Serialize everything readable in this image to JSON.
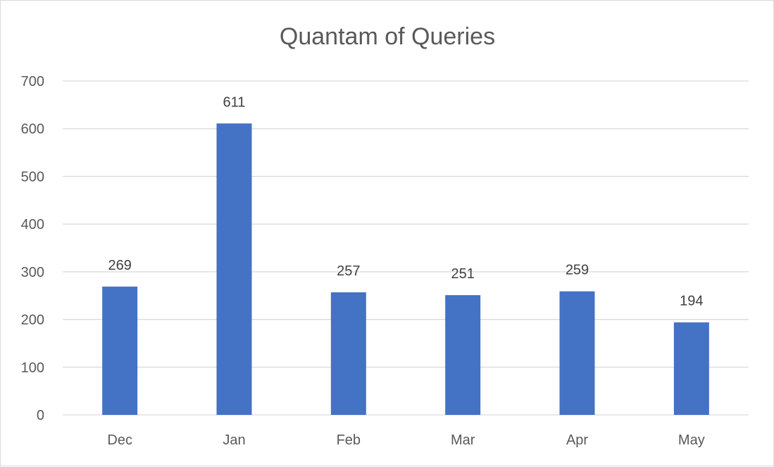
{
  "chart_data": {
    "type": "bar",
    "title": "Quantam of Queries",
    "categories": [
      "Dec",
      "Jan",
      "Feb",
      "Mar",
      "Apr",
      "May"
    ],
    "values": [
      269,
      611,
      257,
      251,
      259,
      194
    ],
    "yticks": [
      "0",
      "100",
      "200",
      "300",
      "400",
      "500",
      "600",
      "700"
    ],
    "ylim": [
      0,
      700
    ],
    "grid": true,
    "data_labels": true,
    "bar_color": "#4472C4",
    "grid_color": "#d9d9d9"
  }
}
